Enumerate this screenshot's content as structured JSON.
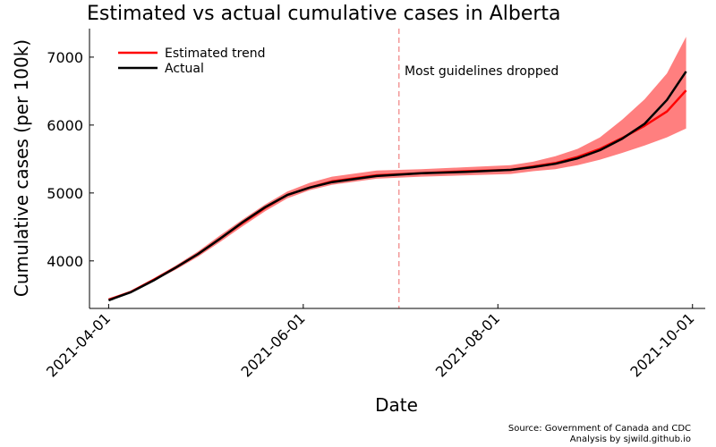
{
  "chart_data": {
    "type": "line",
    "title": "Estimated vs actual cumulative cases in Alberta",
    "xlabel": "Date",
    "ylabel": "Cumulative cases (per 100k)",
    "x_ticks": [
      "2021-04-01",
      "2021-06-01",
      "2021-08-01",
      "2021-10-01"
    ],
    "y_ticks": [
      4000,
      5000,
      6000,
      7000
    ],
    "xlim": [
      "2021-03-26",
      "2021-10-05"
    ],
    "ylim": [
      3300,
      7420
    ],
    "grid": false,
    "legend_position": "top-left",
    "annotation": {
      "text": "Most guidelines dropped",
      "date": "2021-07-01",
      "color": "#f08080"
    },
    "source_lines": [
      "Source: Government of Canada and CDC",
      "Analysis by sjwild.github.io"
    ],
    "series": [
      {
        "name": "Estimated trend",
        "color": "#ff0000",
        "band_color": "#ff7f7f",
        "x": [
          "2021-04-01",
          "2021-04-08",
          "2021-04-15",
          "2021-04-22",
          "2021-04-29",
          "2021-05-06",
          "2021-05-13",
          "2021-05-20",
          "2021-05-27",
          "2021-06-03",
          "2021-06-10",
          "2021-06-24",
          "2021-07-08",
          "2021-07-22",
          "2021-08-05",
          "2021-08-12",
          "2021-08-19",
          "2021-08-26",
          "2021-09-02",
          "2021-09-09",
          "2021-09-16",
          "2021-09-23",
          "2021-09-29"
        ],
        "values": [
          3430,
          3545,
          3720,
          3900,
          4100,
          4330,
          4560,
          4780,
          4970,
          5080,
          5170,
          5260,
          5290,
          5320,
          5340,
          5390,
          5440,
          5530,
          5650,
          5810,
          5990,
          6200,
          6510
        ],
        "lower": [
          3420,
          3530,
          3700,
          3870,
          4060,
          4280,
          4510,
          4730,
          4920,
          5040,
          5120,
          5210,
          5240,
          5260,
          5280,
          5320,
          5350,
          5410,
          5490,
          5590,
          5700,
          5820,
          5950
        ],
        "upper": [
          3440,
          3560,
          3740,
          3930,
          4140,
          4380,
          4610,
          4830,
          5020,
          5150,
          5240,
          5330,
          5350,
          5380,
          5410,
          5460,
          5540,
          5650,
          5820,
          6080,
          6380,
          6760,
          7300
        ]
      },
      {
        "name": "Actual",
        "color": "#000000",
        "x": [
          "2021-04-01",
          "2021-04-08",
          "2021-04-15",
          "2021-04-22",
          "2021-04-29",
          "2021-05-06",
          "2021-05-13",
          "2021-05-20",
          "2021-05-27",
          "2021-06-03",
          "2021-06-10",
          "2021-06-24",
          "2021-07-08",
          "2021-07-22",
          "2021-08-05",
          "2021-08-12",
          "2021-08-19",
          "2021-08-26",
          "2021-09-02",
          "2021-09-09",
          "2021-09-16",
          "2021-09-23",
          "2021-09-29"
        ],
        "values": [
          3420,
          3540,
          3710,
          3900,
          4100,
          4330,
          4570,
          4790,
          4970,
          5080,
          5160,
          5250,
          5290,
          5310,
          5340,
          5380,
          5430,
          5510,
          5630,
          5800,
          6020,
          6370,
          6790
        ]
      }
    ]
  }
}
